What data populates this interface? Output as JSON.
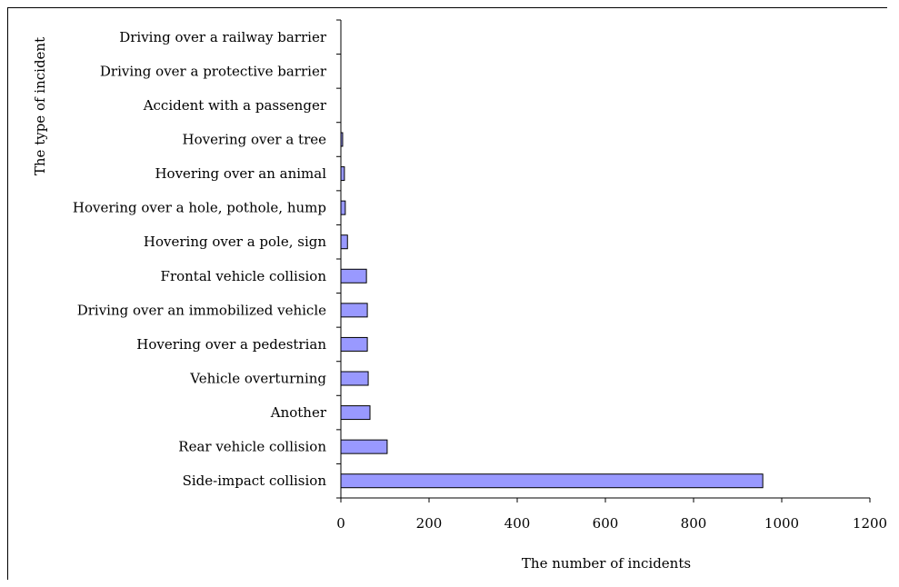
{
  "chart_data": {
    "type": "bar",
    "orientation": "horizontal",
    "categories": [
      "Side-impact collision",
      "Rear vehicle collision",
      "Another",
      "Vehicle overturning",
      "Hovering over a pedestrian",
      "Driving over an immobilized vehicle",
      "Frontal vehicle collision",
      "Hovering over a pole, sign",
      "Hovering over a hole, pothole, hump",
      "Hovering over an animal",
      "Hovering over a tree",
      "Accident with a passenger",
      "Driving over a protective barrier",
      "Driving over a railway barrier"
    ],
    "values": [
      957,
      105,
      66,
      62,
      60,
      60,
      58,
      15,
      10,
      8,
      4,
      0,
      0,
      0
    ],
    "xlabel": "The number of incidents",
    "ylabel": "The type of incident",
    "xlim": [
      0,
      1200
    ],
    "xticks": [
      "0",
      "200",
      "400",
      "600",
      "800",
      "1000",
      "1200"
    ],
    "grid": false,
    "colors": {
      "bar_fill": "#9999ff",
      "bar_stroke": "#000000"
    }
  }
}
